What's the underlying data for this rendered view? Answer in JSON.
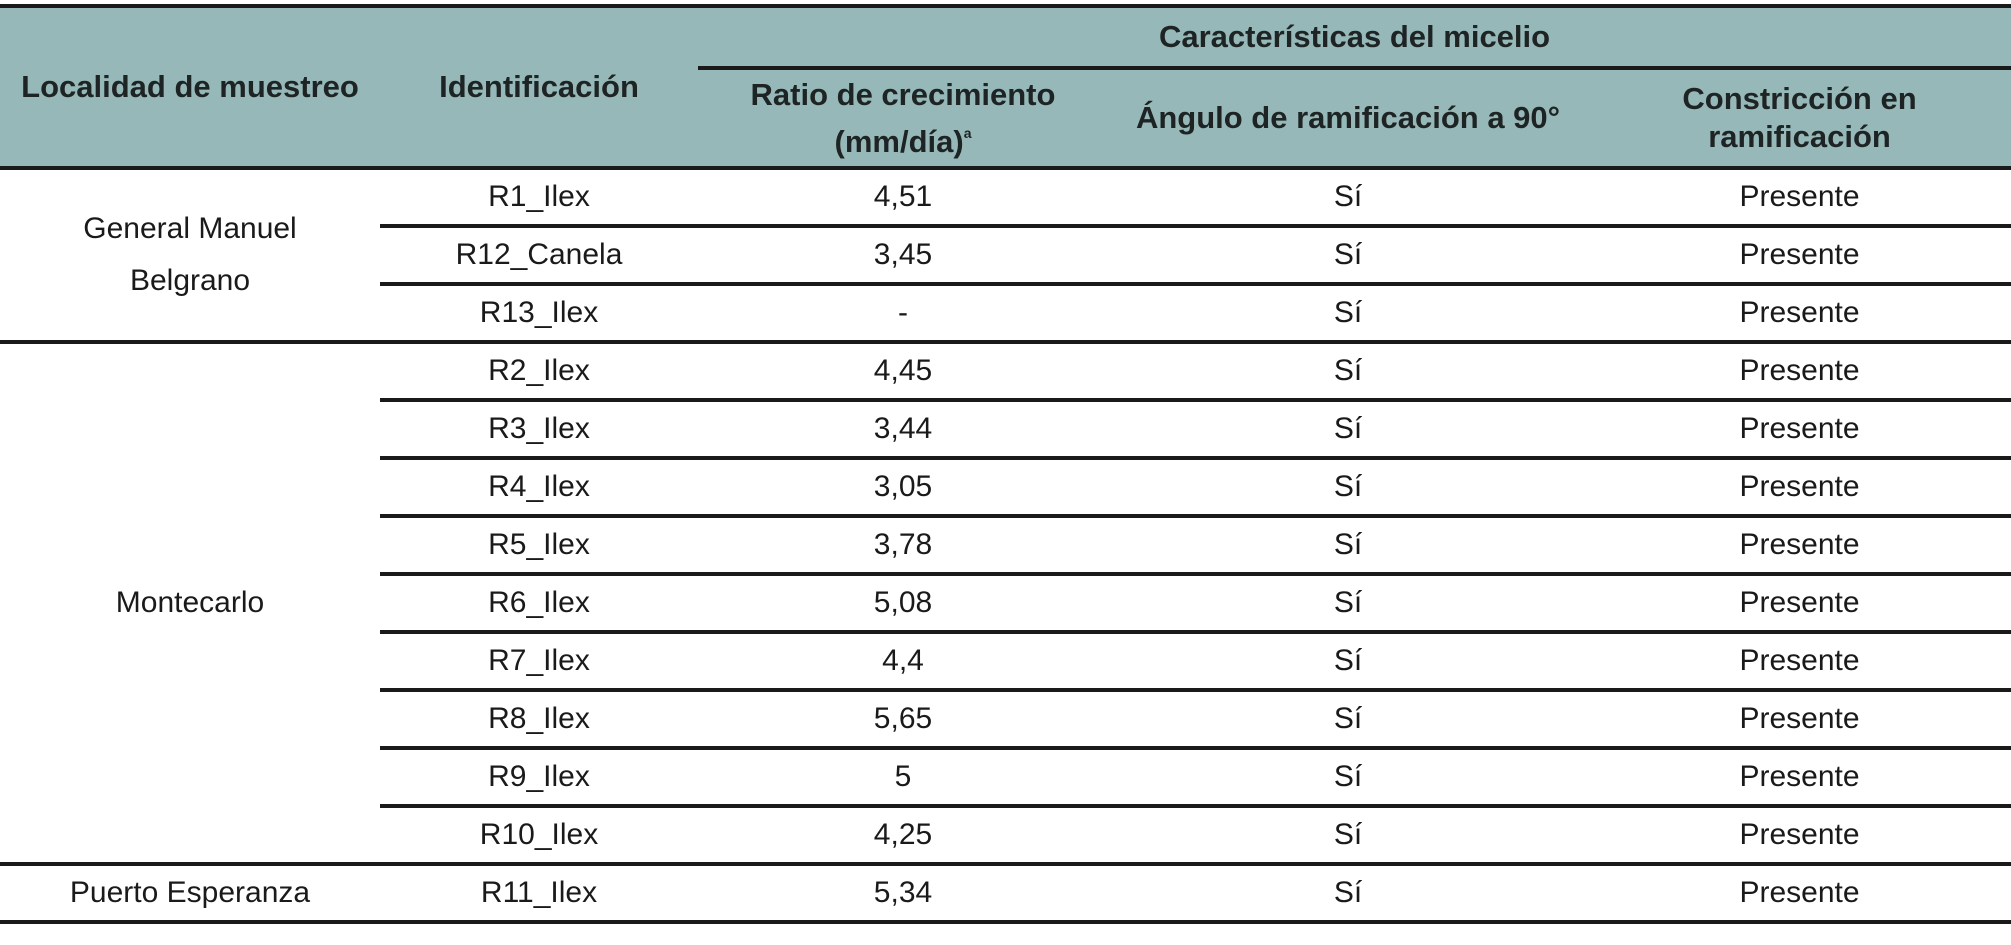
{
  "header": {
    "locality": "Localidad de muestreo",
    "identification": "Identificación",
    "group": "Características del micelio",
    "growth_rate": "Ratio de crecimiento (mm/día)",
    "growth_rate_sup": "a",
    "branch_angle": "Ángulo de ramificación a 90°",
    "constriction": "Constricción en ramificación"
  },
  "groups": [
    {
      "locality": "General Manuel Belgrano",
      "rows": [
        {
          "id": "R1_Ilex",
          "rate": "4,51",
          "angle": "Sí",
          "constriction": "Presente"
        },
        {
          "id": "R12_Canela",
          "rate": "3,45",
          "angle": "Sí",
          "constriction": "Presente"
        },
        {
          "id": "R13_Ilex",
          "rate": "-",
          "angle": "Sí",
          "constriction": "Presente"
        }
      ]
    },
    {
      "locality": "Montecarlo",
      "rows": [
        {
          "id": "R2_Ilex",
          "rate": "4,45",
          "angle": "Sí",
          "constriction": "Presente"
        },
        {
          "id": "R3_Ilex",
          "rate": "3,44",
          "angle": "Sí",
          "constriction": "Presente"
        },
        {
          "id": "R4_Ilex",
          "rate": "3,05",
          "angle": "Sí",
          "constriction": "Presente"
        },
        {
          "id": "R5_Ilex",
          "rate": "3,78",
          "angle": "Sí",
          "constriction": "Presente"
        },
        {
          "id": "R6_Ilex",
          "rate": "5,08",
          "angle": "Sí",
          "constriction": "Presente"
        },
        {
          "id": "R7_Ilex",
          "rate": "4,4",
          "angle": "Sí",
          "constriction": "Presente"
        },
        {
          "id": "R8_Ilex",
          "rate": "5,65",
          "angle": "Sí",
          "constriction": "Presente"
        },
        {
          "id": "R9_Ilex",
          "rate": "5",
          "angle": "Sí",
          "constriction": "Presente"
        },
        {
          "id": "R10_Ilex",
          "rate": "4,25",
          "angle": "Sí",
          "constriction": "Presente"
        }
      ]
    },
    {
      "locality": "Puerto Esperanza",
      "rows": [
        {
          "id": "R11_Ilex",
          "rate": "5,34",
          "angle": "Sí",
          "constriction": "Presente"
        }
      ]
    }
  ],
  "colors": {
    "header_bg": "#96b8b8",
    "rule": "#1a1a1a"
  }
}
